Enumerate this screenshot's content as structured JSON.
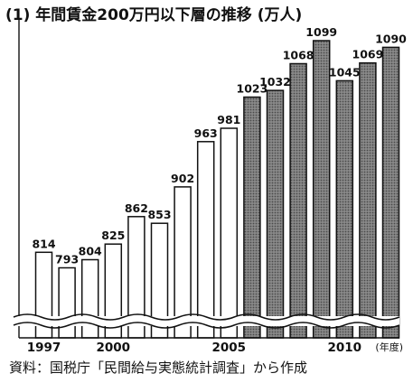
{
  "title": "(1) 年間賃金200万円以下層の推移 (万人)",
  "source": "資料：国税庁「民間給与実態統計調査」から作成",
  "chart_data": {
    "type": "bar",
    "title": "(1) 年間賃金200万円以下層の推移 (万人)",
    "xlabel": "",
    "ylabel": "",
    "x_unit_label": "(年度)",
    "categories": [
      1997,
      1998,
      1999,
      2000,
      2001,
      2002,
      2003,
      2004,
      2005,
      2006,
      2007,
      2008,
      2009,
      2010,
      2011,
      2012
    ],
    "values": [
      814,
      793,
      804,
      825,
      862,
      853,
      902,
      963,
      981,
      1023,
      1032,
      1068,
      1099,
      1045,
      1069,
      1090
    ],
    "x_tick_labels": {
      "1997": "1997",
      "2000": "2000",
      "2005": "2005",
      "2010": "2010"
    },
    "y_axis_broken": true,
    "ylim": [
      700,
      1110
    ],
    "grid": false,
    "legend": "none",
    "bar_styles": {
      "outlined": {
        "from": 1997,
        "to": 2005,
        "fill": "#ffffff"
      },
      "shaded": {
        "from": 2006,
        "to": 2012,
        "fill": "#7a7a7a",
        "pattern": "dotted"
      }
    }
  }
}
